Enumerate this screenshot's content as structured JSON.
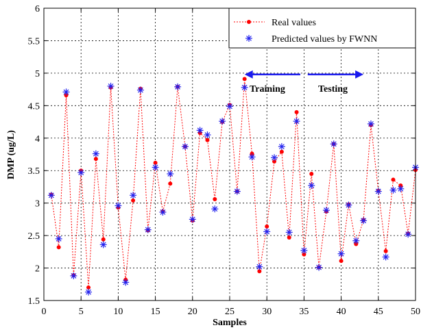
{
  "chart_data": {
    "type": "line",
    "xlabel": "Samples",
    "ylabel": "DMP (ug/L)",
    "xlim": [
      0,
      50
    ],
    "ylim": [
      1.5,
      6
    ],
    "grid": true,
    "legend_position": "top-right",
    "xticks": [
      0,
      5,
      10,
      15,
      20,
      25,
      30,
      35,
      40,
      45,
      50
    ],
    "yticks": [
      1.5,
      2,
      2.5,
      3,
      3.5,
      4,
      4.5,
      5,
      5.5,
      6
    ],
    "series": [
      {
        "name": "Real values",
        "style": "dotted-line-with-dots",
        "color": "#ff0000",
        "x": [
          1,
          2,
          3,
          4,
          5,
          6,
          7,
          8,
          9,
          10,
          11,
          12,
          13,
          14,
          15,
          16,
          17,
          18,
          19,
          20,
          21,
          22,
          23,
          24,
          25,
          26,
          27,
          28,
          29,
          30,
          31,
          32,
          33,
          34,
          35,
          36,
          37,
          38,
          39,
          40,
          41,
          42,
          43,
          44,
          45,
          46,
          47,
          48,
          49,
          50
        ],
        "values": [
          3.13,
          2.32,
          4.66,
          1.89,
          3.5,
          1.7,
          3.68,
          2.44,
          4.78,
          2.93,
          1.82,
          3.04,
          4.76,
          2.58,
          3.62,
          2.87,
          3.3,
          4.79,
          3.87,
          2.73,
          4.08,
          3.97,
          3.06,
          4.25,
          4.51,
          3.18,
          4.91,
          3.76,
          1.95,
          2.64,
          3.64,
          3.79,
          2.47,
          4.4,
          2.21,
          3.45,
          2.01,
          2.87,
          3.91,
          2.11,
          2.98,
          2.37,
          2.74,
          4.2,
          3.19,
          2.26,
          3.36,
          3.27,
          2.53,
          3.51
        ]
      },
      {
        "name": "Predicted values by FWNN",
        "style": "asterisk-markers",
        "color": "#2222ee",
        "x": [
          1,
          2,
          3,
          4,
          5,
          6,
          7,
          8,
          9,
          10,
          11,
          12,
          13,
          14,
          15,
          16,
          17,
          18,
          19,
          20,
          21,
          22,
          23,
          24,
          25,
          26,
          27,
          28,
          29,
          30,
          31,
          32,
          33,
          34,
          35,
          36,
          37,
          38,
          39,
          40,
          41,
          42,
          43,
          44,
          45,
          46,
          47,
          48,
          49,
          50
        ],
        "values": [
          3.12,
          2.45,
          4.71,
          1.88,
          3.47,
          1.63,
          3.76,
          2.36,
          4.8,
          2.96,
          1.78,
          3.12,
          4.74,
          2.59,
          3.55,
          2.86,
          3.45,
          4.79,
          3.87,
          2.75,
          4.12,
          4.05,
          2.91,
          4.26,
          4.49,
          3.18,
          4.78,
          3.71,
          2.02,
          2.56,
          3.7,
          3.87,
          2.55,
          4.26,
          2.27,
          3.27,
          2.01,
          2.89,
          3.91,
          2.22,
          2.97,
          2.42,
          2.73,
          4.22,
          3.18,
          2.17,
          3.2,
          3.22,
          2.52,
          3.55
        ]
      }
    ],
    "annotations": {
      "training": "Training",
      "testing": "Testing",
      "training_arrow": {
        "x_from": 34.5,
        "x_to": 27,
        "y": 4.98
      },
      "testing_arrow": {
        "x_from": 35.5,
        "x_to": 43,
        "y": 4.98
      }
    }
  }
}
